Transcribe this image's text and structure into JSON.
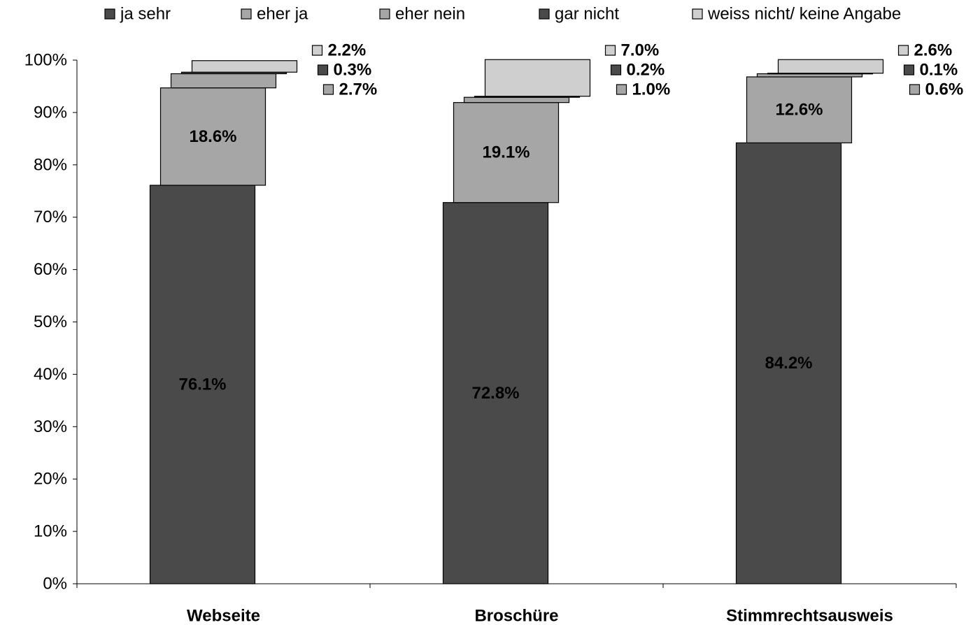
{
  "chart_data": {
    "type": "bar",
    "stacked": true,
    "categories": [
      "Webseite",
      "Broschüre",
      "Stimmrechtsausweis"
    ],
    "series": [
      {
        "name": "ja sehr",
        "color": "#4a4a4a",
        "values": [
          76.1,
          72.8,
          84.2
        ],
        "labels": [
          "76.1%",
          "72.8%",
          "84.2%"
        ]
      },
      {
        "name": "eher ja",
        "color": "#a6a6a6",
        "values": [
          18.6,
          19.1,
          12.6
        ],
        "labels": [
          "18.6%",
          "19.1%",
          "12.6%"
        ]
      },
      {
        "name": "eher nein",
        "color": "#a6a6a6",
        "values": [
          2.7,
          1.0,
          0.6
        ],
        "labels": [
          "2.7%",
          "1.0%",
          "0.6%"
        ]
      },
      {
        "name": "gar nicht",
        "color": "#4a4a4a",
        "values": [
          0.3,
          0.2,
          0.1
        ],
        "labels": [
          "0.3%",
          "0.2%",
          "0.1%"
        ]
      },
      {
        "name": "weiss nicht/ keine Angabe",
        "color": "#cfcfcf",
        "values": [
          2.2,
          7.0,
          2.6
        ],
        "labels": [
          "2.2%",
          "7.0%",
          "2.6%"
        ]
      }
    ],
    "ylim": [
      0,
      100
    ],
    "yticks": [
      "0%",
      "10%",
      "20%",
      "30%",
      "40%",
      "50%",
      "60%",
      "70%",
      "80%",
      "90%",
      "100%"
    ],
    "legend_position": "top",
    "grid": false
  }
}
